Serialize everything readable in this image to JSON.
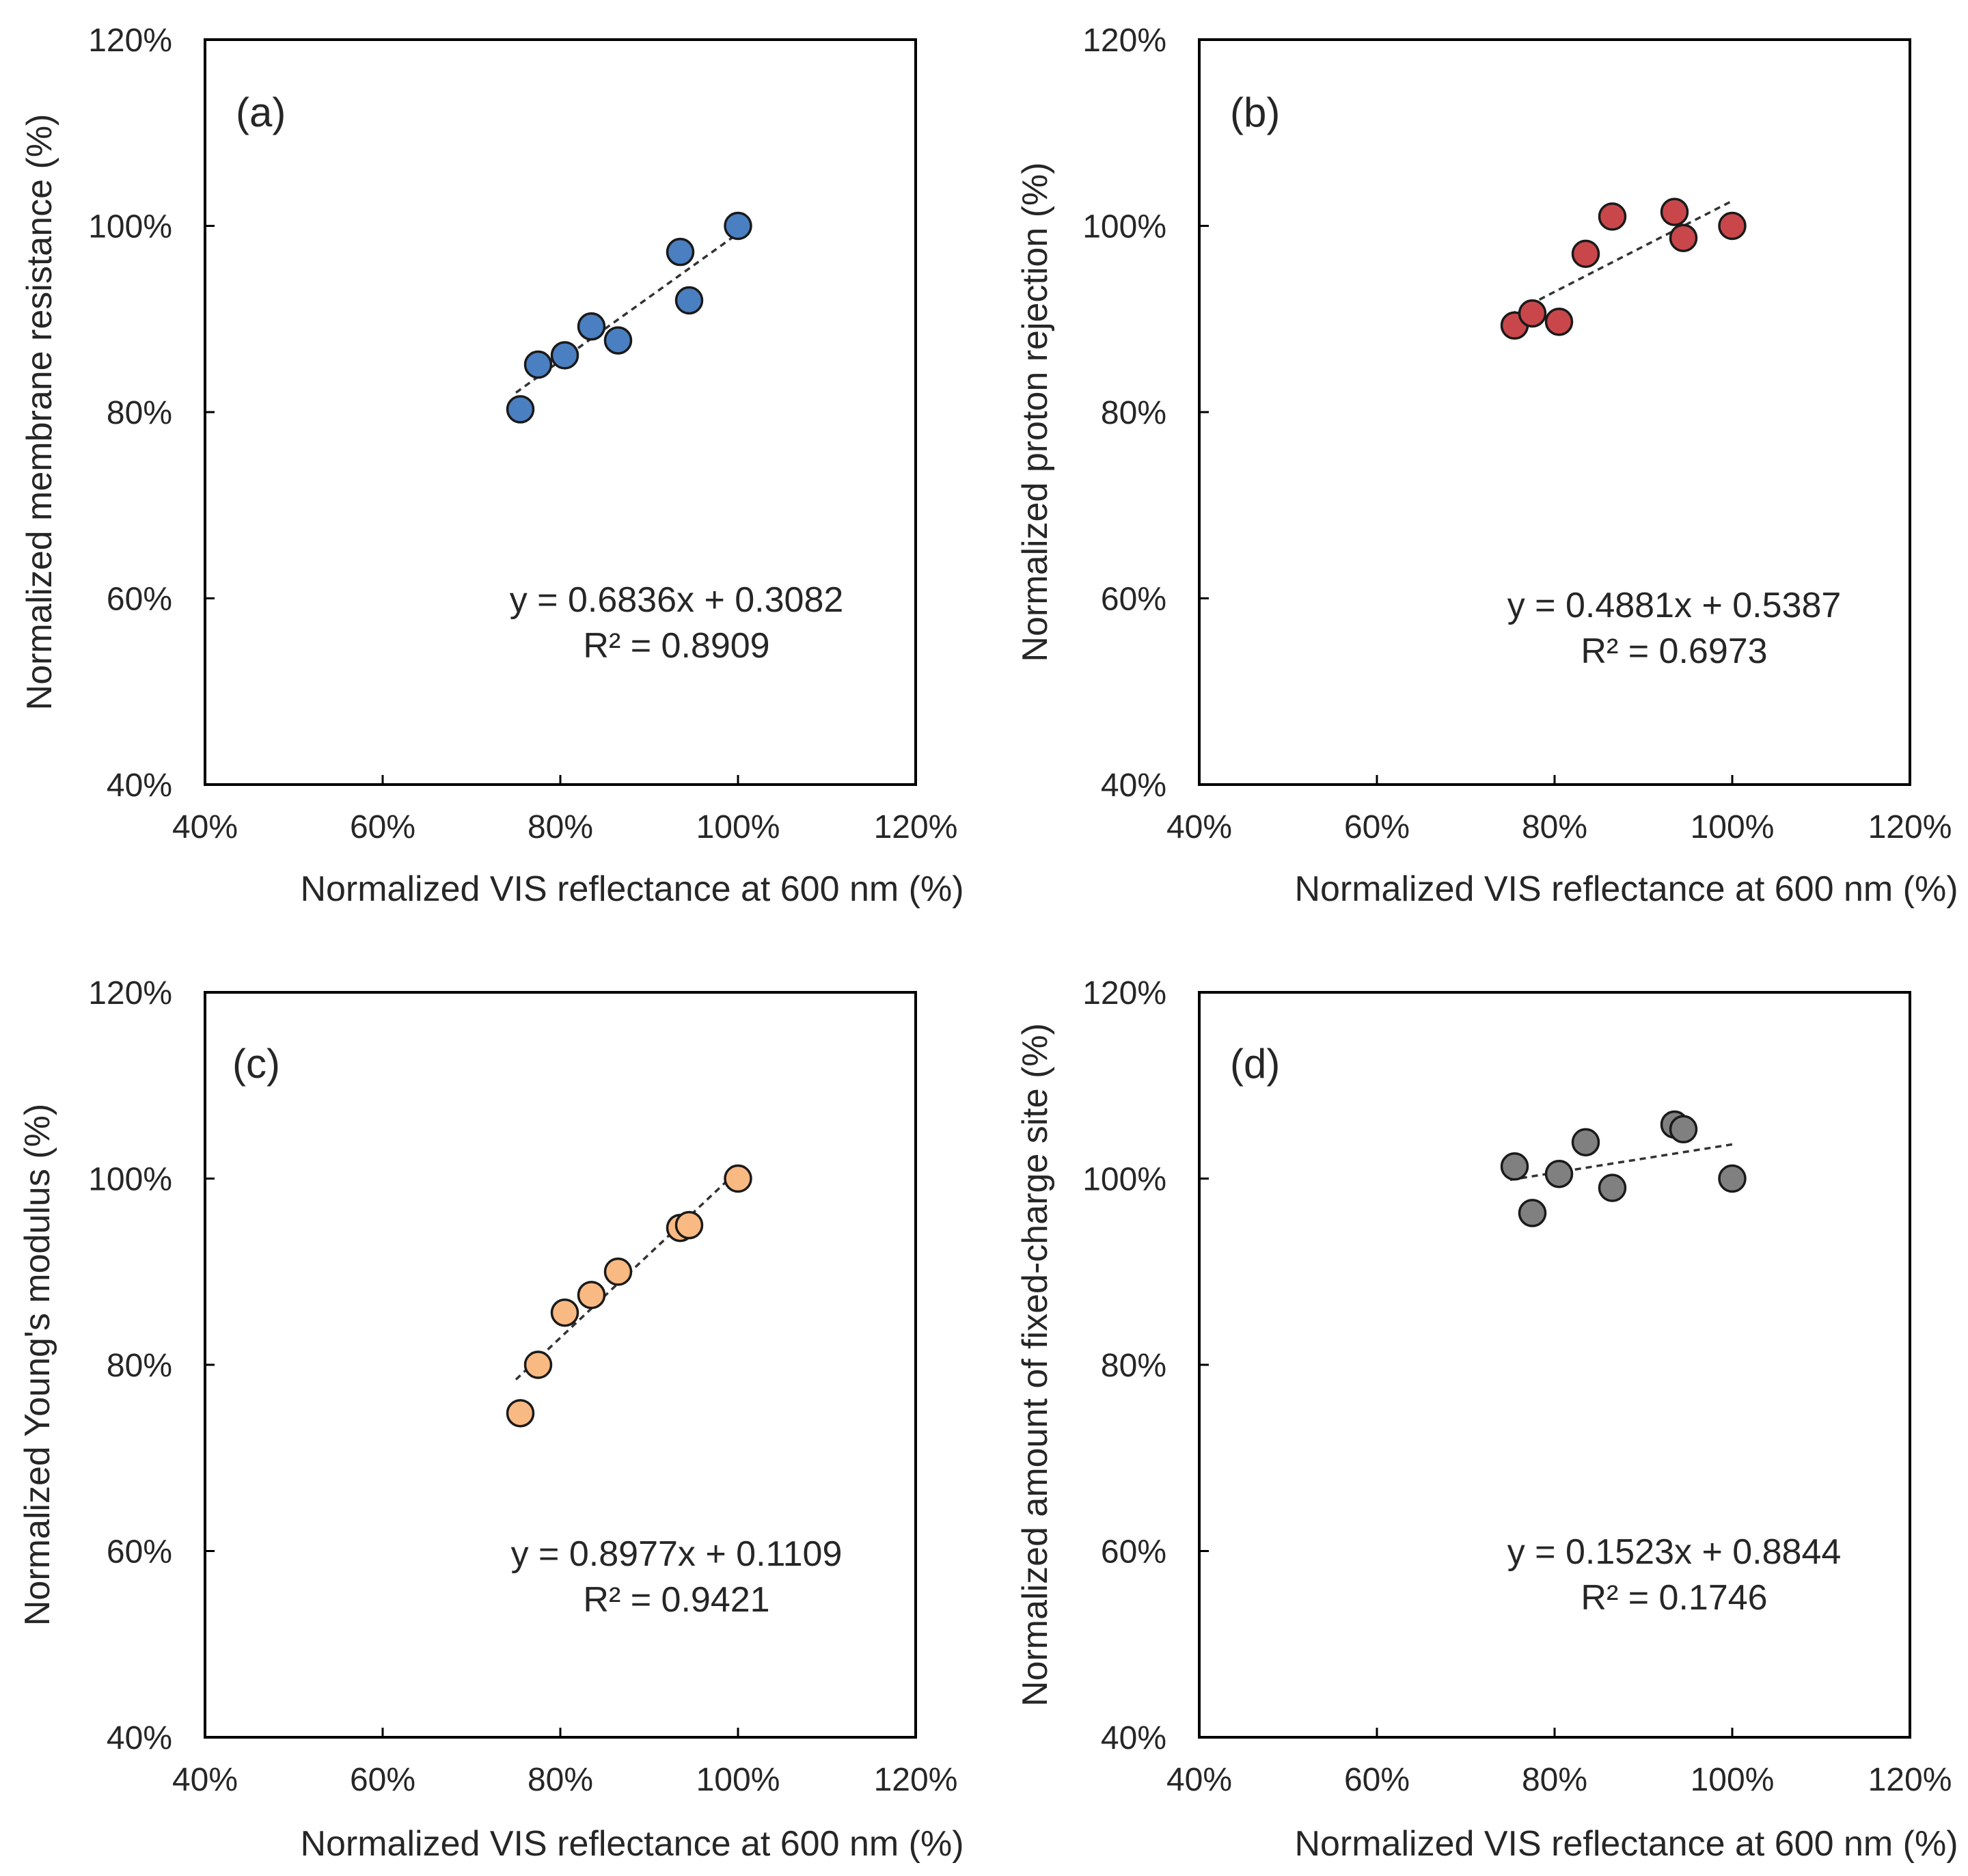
{
  "chart_data": [
    {
      "type": "scatter",
      "panel_label": "(a)",
      "xlabel": "Normalized VIS reflectance at 600 nm (%)",
      "ylabel": "Normalized membrane resistance (%)",
      "xlim": [
        0.4,
        1.2
      ],
      "ylim": [
        0.4,
        1.2
      ],
      "x_ticks": [
        0.4,
        0.6,
        0.8,
        1.0,
        1.2
      ],
      "x_tick_labels": [
        "40%",
        "60%",
        "80%",
        "100%",
        "120%"
      ],
      "y_ticks": [
        0.4,
        0.6,
        0.8,
        1.0,
        1.2
      ],
      "y_tick_labels": [
        "40%",
        "60%",
        "80%",
        "100%",
        "120%"
      ],
      "point_color": "#4a7fc1",
      "x": [
        0.755,
        0.775,
        0.805,
        0.835,
        0.865,
        0.935,
        0.945,
        1.0
      ],
      "y": [
        0.803,
        0.851,
        0.861,
        0.892,
        0.877,
        0.972,
        0.92,
        1.0
      ],
      "trendline": {
        "slope": 0.6836,
        "intercept": 0.3082,
        "x_range": [
          0.75,
          1.0
        ]
      },
      "equation": "y = 0.6836x + 0.3082",
      "r_squared": "R² = 0.8909"
    },
    {
      "type": "scatter",
      "panel_label": "(b)",
      "xlabel": "Normalized VIS reflectance at 600 nm (%)",
      "ylabel": "Normalized proton rejection (%)",
      "xlim": [
        0.4,
        1.2
      ],
      "ylim": [
        0.4,
        1.2
      ],
      "x_ticks": [
        0.4,
        0.6,
        0.8,
        1.0,
        1.2
      ],
      "x_tick_labels": [
        "40%",
        "60%",
        "80%",
        "100%",
        "120%"
      ],
      "y_ticks": [
        0.4,
        0.6,
        0.8,
        1.0,
        1.2
      ],
      "y_tick_labels": [
        "40%",
        "60%",
        "80%",
        "100%",
        "120%"
      ],
      "point_color": "#c9474a",
      "x": [
        0.755,
        0.775,
        0.805,
        0.835,
        0.865,
        0.935,
        0.945,
        1.0
      ],
      "y": [
        0.893,
        0.906,
        0.897,
        0.97,
        1.01,
        1.015,
        0.987,
        1.0
      ],
      "trendline": {
        "slope": 0.4881,
        "intercept": 0.5387,
        "x_range": [
          0.75,
          1.0
        ]
      },
      "equation": "y = 0.4881x + 0.5387",
      "r_squared": "R² = 0.6973"
    },
    {
      "type": "scatter",
      "panel_label": "(c)",
      "xlabel": "Normalized VIS reflectance at 600 nm (%)",
      "ylabel": "Normalized Young's modulus (%)",
      "xlim": [
        0.4,
        1.2
      ],
      "ylim": [
        0.4,
        1.2
      ],
      "x_ticks": [
        0.4,
        0.6,
        0.8,
        1.0,
        1.2
      ],
      "x_tick_labels": [
        "40%",
        "60%",
        "80%",
        "100%",
        "120%"
      ],
      "y_ticks": [
        0.4,
        0.6,
        0.8,
        1.0,
        1.2
      ],
      "y_tick_labels": [
        "40%",
        "60%",
        "80%",
        "100%",
        "120%"
      ],
      "point_color": "#f9b982",
      "x": [
        0.755,
        0.775,
        0.805,
        0.835,
        0.865,
        0.935,
        0.945,
        1.0
      ],
      "y": [
        0.748,
        0.8,
        0.856,
        0.875,
        0.9,
        0.947,
        0.95,
        1.0
      ],
      "trendline": {
        "slope": 0.8977,
        "intercept": 0.1109,
        "x_range": [
          0.75,
          1.0
        ]
      },
      "equation": "y = 0.8977x + 0.1109",
      "r_squared": "R² = 0.9421"
    },
    {
      "type": "scatter",
      "panel_label": "(d)",
      "xlabel": "Normalized VIS reflectance at 600 nm (%)",
      "ylabel": "Normalized amount of fixed-charge site (%)",
      "xlim": [
        0.4,
        1.2
      ],
      "ylim": [
        0.4,
        1.2
      ],
      "x_ticks": [
        0.4,
        0.6,
        0.8,
        1.0,
        1.2
      ],
      "x_tick_labels": [
        "40%",
        "60%",
        "80%",
        "100%",
        "120%"
      ],
      "y_ticks": [
        0.4,
        0.6,
        0.8,
        1.0,
        1.2
      ],
      "y_tick_labels": [
        "40%",
        "60%",
        "80%",
        "100%",
        "120%"
      ],
      "point_color": "#808080",
      "x": [
        0.755,
        0.775,
        0.805,
        0.835,
        0.865,
        0.935,
        0.945,
        1.0
      ],
      "y": [
        1.013,
        0.963,
        1.005,
        1.039,
        0.99,
        1.058,
        1.053,
        1.0
      ],
      "trendline": {
        "slope": 0.1523,
        "intercept": 0.8844,
        "x_range": [
          0.75,
          1.0
        ]
      },
      "equation": "y = 0.1523x + 0.8844",
      "r_squared": "R² = 0.1746"
    }
  ]
}
